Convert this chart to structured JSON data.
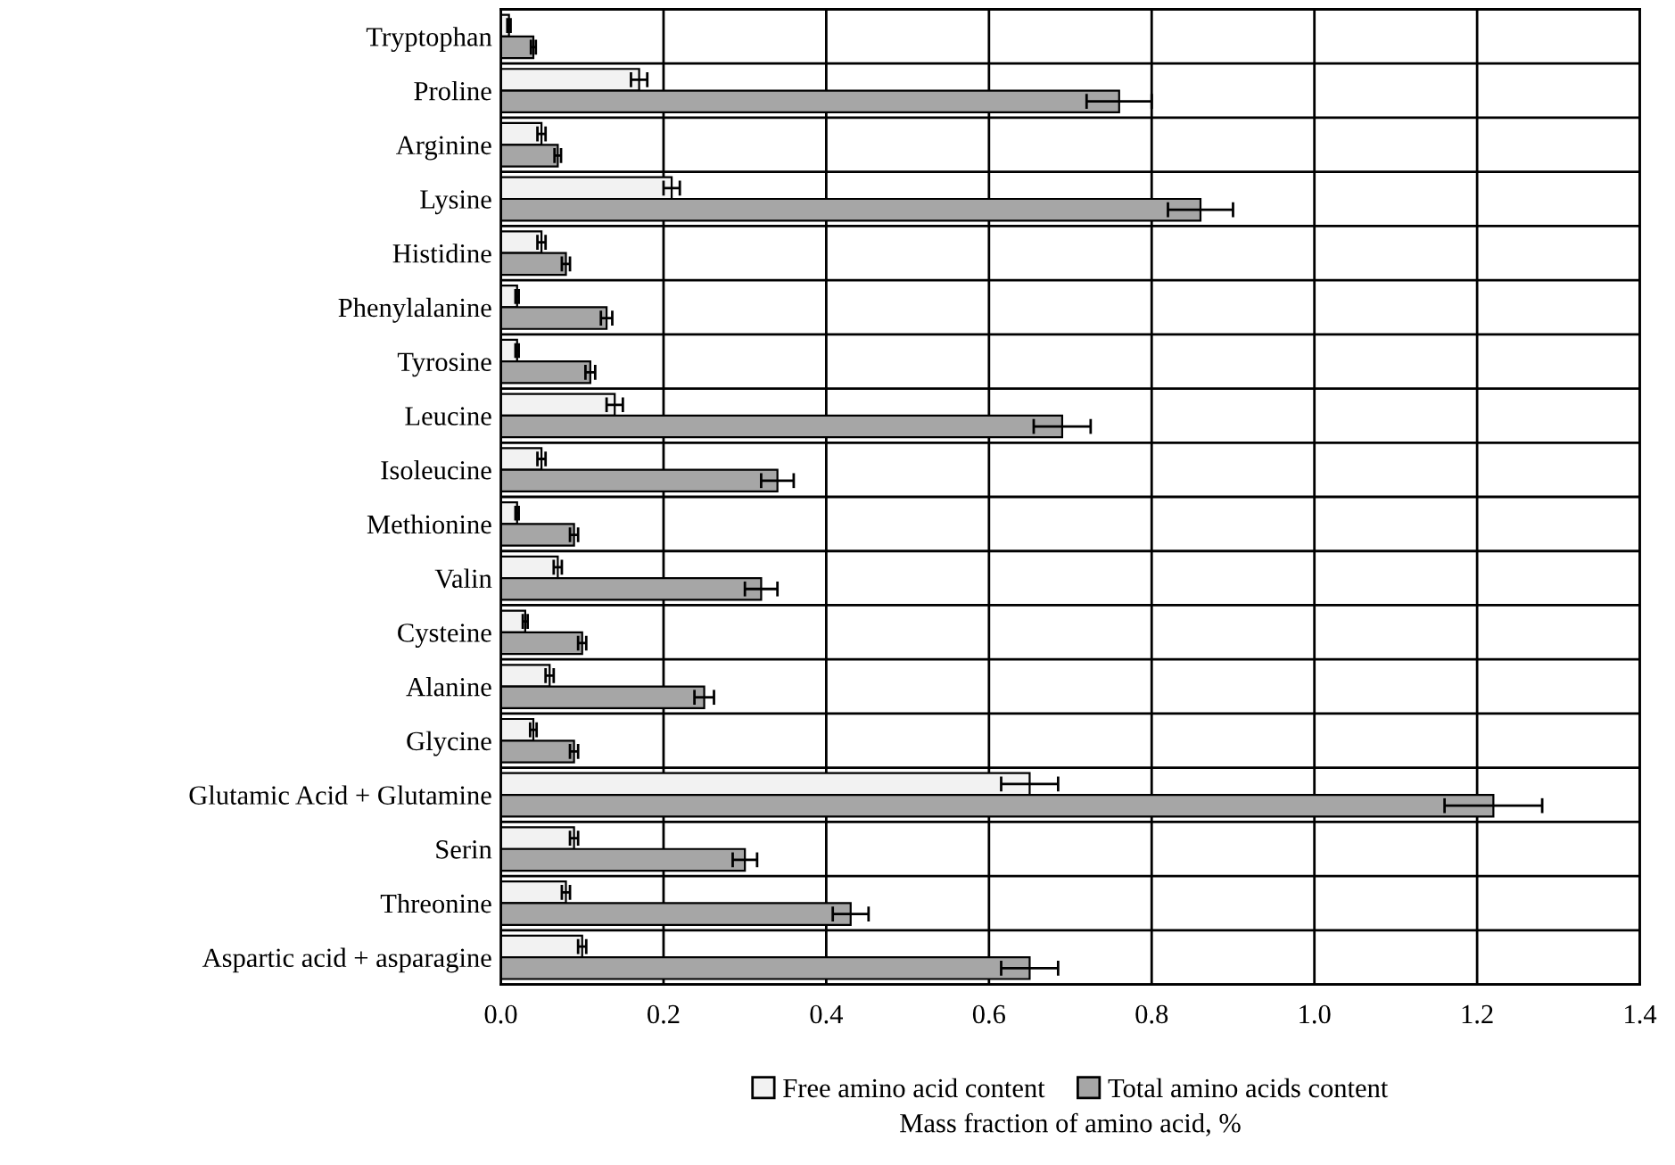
{
  "chart_data": {
    "type": "bar",
    "orientation": "horizontal",
    "xlabel": "Mass fraction of amino acid, %",
    "categories": [
      "Tryptophan",
      "Proline",
      "Arginine",
      "Lysine",
      "Histidine",
      "Phenylalanine",
      "Tyrosine",
      "Leucine",
      "Isoleucine",
      "Methionine",
      "Valin",
      "Cysteine",
      "Alanine",
      "Glycine",
      "Glutamic Acid + Glutamine",
      "Serin",
      "Threonine",
      "Aspartic acid + asparagine"
    ],
    "series": [
      {
        "name": "Free amino acid content",
        "color": "#f2f2f2",
        "values": [
          0.01,
          0.17,
          0.05,
          0.21,
          0.05,
          0.02,
          0.02,
          0.14,
          0.05,
          0.02,
          0.07,
          0.03,
          0.06,
          0.04,
          0.65,
          0.09,
          0.08,
          0.1
        ],
        "errors": [
          0.002,
          0.01,
          0.005,
          0.01,
          0.005,
          0.002,
          0.002,
          0.01,
          0.005,
          0.002,
          0.005,
          0.003,
          0.005,
          0.004,
          0.035,
          0.005,
          0.005,
          0.005
        ]
      },
      {
        "name": "Total amino acids content",
        "color": "#a6a6a6",
        "values": [
          0.04,
          0.76,
          0.07,
          0.86,
          0.08,
          0.13,
          0.11,
          0.69,
          0.34,
          0.09,
          0.32,
          0.1,
          0.25,
          0.09,
          1.22,
          0.3,
          0.43,
          0.65
        ],
        "errors": [
          0.003,
          0.04,
          0.004,
          0.04,
          0.005,
          0.007,
          0.006,
          0.035,
          0.02,
          0.005,
          0.02,
          0.005,
          0.012,
          0.005,
          0.06,
          0.015,
          0.022,
          0.035
        ]
      }
    ],
    "xlim": [
      0,
      1.4
    ],
    "xticks": [
      {
        "value": 0,
        "label": "0.0"
      },
      {
        "value": 0.2,
        "label": "0.2"
      },
      {
        "value": 0.4,
        "label": "0.4"
      },
      {
        "value": 0.6,
        "label": "0.6"
      },
      {
        "value": 0.8,
        "label": "0.8"
      },
      {
        "value": 1.0,
        "label": "1.0"
      },
      {
        "value": 1.2,
        "label": "1.2"
      },
      {
        "value": 1.4,
        "label": "1.4"
      }
    ],
    "grid": true,
    "legend": "bottom"
  }
}
